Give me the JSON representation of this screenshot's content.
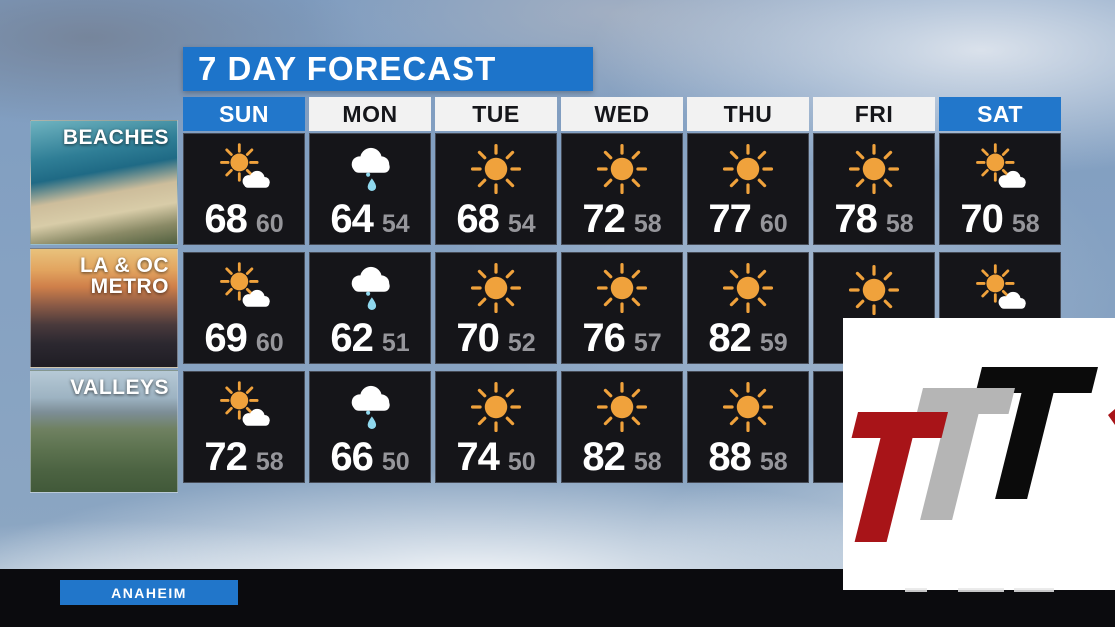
{
  "title": "7 DAY FORECAST",
  "days": [
    {
      "label": "SUN",
      "highlight": true
    },
    {
      "label": "MON",
      "highlight": false
    },
    {
      "label": "TUE",
      "highlight": false
    },
    {
      "label": "WED",
      "highlight": false
    },
    {
      "label": "THU",
      "highlight": false
    },
    {
      "label": "FRI",
      "highlight": false
    },
    {
      "label": "SAT",
      "highlight": true
    }
  ],
  "regions": [
    {
      "id": "beaches",
      "label_lines": [
        "BEACHES"
      ],
      "cells": [
        {
          "day": "SUN",
          "icon": "partly-cloudy",
          "hi": "68",
          "lo": "60"
        },
        {
          "day": "MON",
          "icon": "rain",
          "hi": "64",
          "lo": "54"
        },
        {
          "day": "TUE",
          "icon": "sunny",
          "hi": "68",
          "lo": "54"
        },
        {
          "day": "WED",
          "icon": "sunny",
          "hi": "72",
          "lo": "58"
        },
        {
          "day": "THU",
          "icon": "sunny",
          "hi": "77",
          "lo": "60"
        },
        {
          "day": "FRI",
          "icon": "sunny",
          "hi": "78",
          "lo": "58"
        },
        {
          "day": "SAT",
          "icon": "partly-cloudy",
          "hi": "70",
          "lo": "58"
        }
      ]
    },
    {
      "id": "metro",
      "label_lines": [
        "LA & OC",
        "METRO"
      ],
      "cells": [
        {
          "day": "SUN",
          "icon": "partly-cloudy",
          "hi": "69",
          "lo": "60"
        },
        {
          "day": "MON",
          "icon": "rain",
          "hi": "62",
          "lo": "51"
        },
        {
          "day": "TUE",
          "icon": "sunny",
          "hi": "70",
          "lo": "52"
        },
        {
          "day": "WED",
          "icon": "sunny",
          "hi": "76",
          "lo": "57"
        },
        {
          "day": "THU",
          "icon": "sunny",
          "hi": "82",
          "lo": "59"
        },
        {
          "day": "FRI",
          "icon": "sunny",
          "hi": null,
          "lo": null,
          "obscured": true
        },
        {
          "day": "SAT",
          "icon": "partly-cloudy",
          "hi": null,
          "lo": null,
          "obscured": true
        }
      ]
    },
    {
      "id": "valleys",
      "label_lines": [
        "VALLEYS"
      ],
      "cells": [
        {
          "day": "SUN",
          "icon": "partly-cloudy",
          "hi": "72",
          "lo": "58"
        },
        {
          "day": "MON",
          "icon": "rain",
          "hi": "66",
          "lo": "50"
        },
        {
          "day": "TUE",
          "icon": "sunny",
          "hi": "74",
          "lo": "50"
        },
        {
          "day": "WED",
          "icon": "sunny",
          "hi": "82",
          "lo": "58"
        },
        {
          "day": "THU",
          "icon": "sunny",
          "hi": "88",
          "lo": "58"
        },
        {
          "day": "FRI",
          "icon": null,
          "hi": null,
          "lo": null,
          "obscured": true
        },
        {
          "day": "SAT",
          "icon": null,
          "hi": null,
          "lo": null,
          "obscured": true
        }
      ]
    }
  ],
  "bottom_bar": {
    "location_tag": "ANAHEIM"
  },
  "logo": {
    "letters": [
      "T",
      "T",
      "T"
    ],
    "colors": {
      "red": "#a81418",
      "gray": "#b5b5b5",
      "black": "#0b0b0b"
    }
  },
  "colors": {
    "accent_blue": "#2277cb",
    "title_bar_blue": "#1d74ca",
    "cell_bg": "#151519",
    "hi_temp": "#ffffff",
    "lo_temp": "#96969b",
    "sun": "#f0a23c",
    "rain_drop": "#8fd8ee"
  }
}
